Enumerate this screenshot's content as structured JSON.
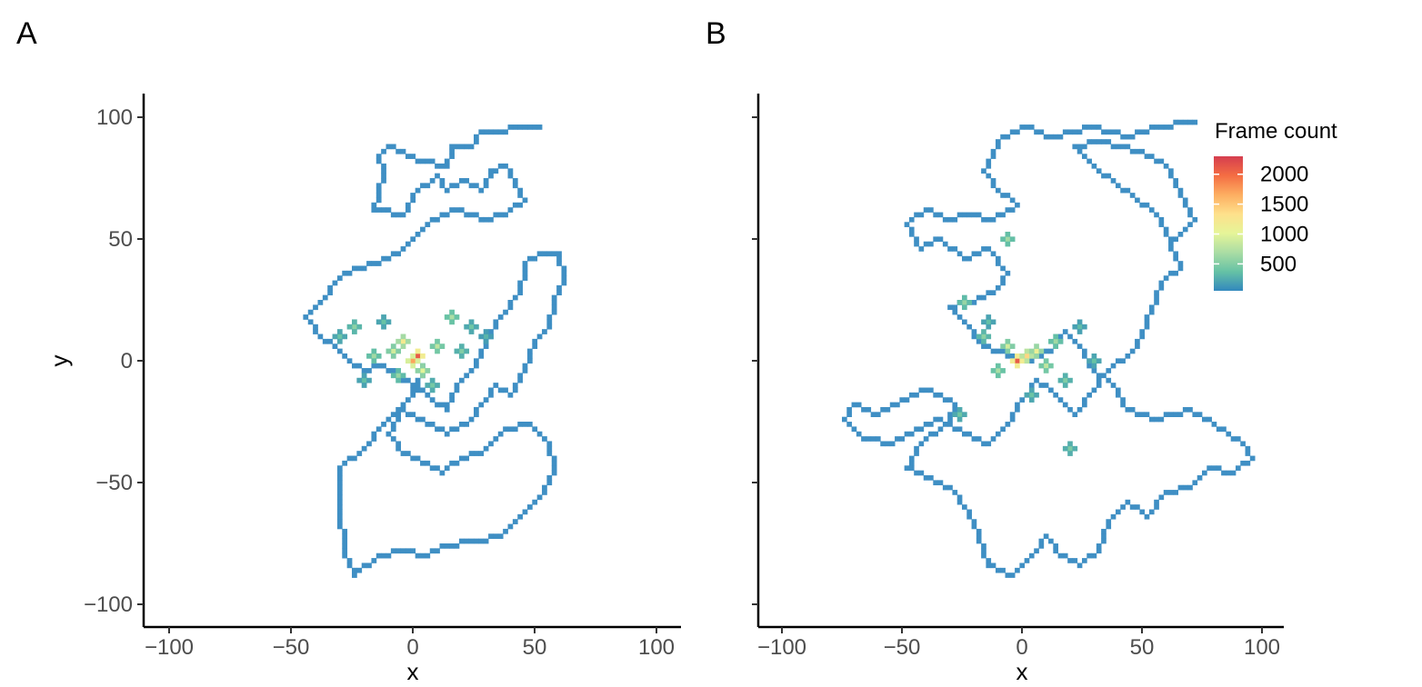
{
  "chart_data": [
    {
      "panel": "A",
      "type": "heatmap",
      "xlabel": "x",
      "ylabel": "y",
      "xlim": [
        -110,
        110
      ],
      "ylim": [
        -110,
        110
      ],
      "xticks": [
        -100,
        -50,
        0,
        50,
        100
      ],
      "yticks": [
        -100,
        -50,
        0,
        50,
        100
      ],
      "xtick_labels": [
        "−100",
        "−50",
        "0",
        "50",
        "100"
      ],
      "ytick_labels": [
        "−100",
        "−50",
        "0",
        "50",
        "100"
      ],
      "grid": false,
      "bin_size": 2,
      "cell_color": "#3f8fc4",
      "trajectory": [
        [
          52,
          95
        ],
        [
          40,
          95
        ],
        [
          28,
          93
        ],
        [
          24,
          88
        ],
        [
          16,
          88
        ],
        [
          14,
          80
        ],
        [
          2,
          82
        ],
        [
          -4,
          86
        ],
        [
          -10,
          88
        ],
        [
          -14,
          84
        ],
        [
          -12,
          78
        ],
        [
          -14,
          70
        ],
        [
          -16,
          62
        ],
        [
          -4,
          60
        ],
        [
          0,
          68
        ],
        [
          10,
          76
        ],
        [
          14,
          70
        ],
        [
          22,
          74
        ],
        [
          28,
          70
        ],
        [
          32,
          78
        ],
        [
          38,
          80
        ],
        [
          42,
          72
        ],
        [
          46,
          66
        ],
        [
          38,
          60
        ],
        [
          30,
          58
        ],
        [
          18,
          62
        ],
        [
          8,
          58
        ],
        [
          0,
          50
        ],
        [
          -6,
          44
        ],
        [
          -16,
          40
        ],
        [
          -28,
          36
        ],
        [
          -40,
          22
        ],
        [
          -44,
          18
        ],
        [
          -38,
          10
        ],
        [
          -30,
          4
        ],
        [
          -26,
          0
        ],
        [
          -20,
          -4
        ],
        [
          -12,
          -2
        ],
        [
          -6,
          -6
        ],
        [
          0,
          -10
        ],
        [
          8,
          -16
        ],
        [
          14,
          -20
        ],
        [
          18,
          -10
        ],
        [
          24,
          -4
        ],
        [
          30,
          8
        ],
        [
          36,
          18
        ],
        [
          44,
          28
        ],
        [
          46,
          40
        ],
        [
          54,
          44
        ],
        [
          60,
          44
        ],
        [
          62,
          34
        ],
        [
          58,
          26
        ],
        [
          56,
          14
        ],
        [
          50,
          8
        ],
        [
          46,
          -4
        ],
        [
          40,
          -14
        ],
        [
          34,
          -10
        ],
        [
          28,
          -18
        ],
        [
          22,
          -26
        ],
        [
          14,
          -30
        ],
        [
          4,
          -24
        ],
        [
          -6,
          -20
        ],
        [
          -14,
          -28
        ],
        [
          -20,
          -36
        ],
        [
          -30,
          -44
        ],
        [
          -30,
          -60
        ],
        [
          -28,
          -80
        ],
        [
          -24,
          -88
        ],
        [
          -14,
          -80
        ],
        [
          -4,
          -78
        ],
        [
          6,
          -80
        ],
        [
          14,
          -76
        ],
        [
          26,
          -74
        ],
        [
          36,
          -72
        ],
        [
          44,
          -64
        ],
        [
          52,
          -56
        ],
        [
          58,
          -46
        ],
        [
          56,
          -34
        ],
        [
          48,
          -26
        ],
        [
          38,
          -28
        ],
        [
          28,
          -38
        ],
        [
          20,
          -40
        ],
        [
          12,
          -46
        ],
        [
          4,
          -42
        ],
        [
          -4,
          -38
        ],
        [
          -10,
          -30
        ],
        [
          -2,
          -16
        ],
        [
          4,
          -4
        ],
        [
          2,
          2
        ]
      ],
      "hot_cells": [
        [
          2,
          2,
          2100
        ],
        [
          0,
          0,
          1700
        ],
        [
          -4,
          8,
          1200
        ],
        [
          4,
          -4,
          1000
        ],
        [
          -8,
          4,
          900
        ],
        [
          10,
          6,
          800
        ],
        [
          16,
          18,
          700
        ],
        [
          -16,
          2,
          650
        ],
        [
          -24,
          14,
          550
        ],
        [
          20,
          4,
          500
        ],
        [
          -6,
          -6,
          600
        ],
        [
          8,
          -10,
          450
        ],
        [
          -30,
          10,
          400
        ],
        [
          24,
          14,
          420
        ],
        [
          -12,
          16,
          380
        ],
        [
          -20,
          -8,
          360
        ],
        [
          30,
          10,
          300
        ]
      ]
    },
    {
      "panel": "B",
      "type": "heatmap",
      "xlabel": "x",
      "ylabel": "",
      "xlim": [
        -110,
        110
      ],
      "ylim": [
        -110,
        110
      ],
      "xticks": [
        -100,
        -50,
        0,
        50,
        100
      ],
      "yticks": [
        -100,
        -50,
        0,
        50,
        100
      ],
      "xtick_labels": [
        "−100",
        "−50",
        "0",
        "50",
        "100"
      ],
      "grid": false,
      "bin_size": 2,
      "cell_color": "#3f8fc4",
      "trajectory": [
        [
          72,
          98
        ],
        [
          56,
          96
        ],
        [
          44,
          92
        ],
        [
          30,
          96
        ],
        [
          12,
          92
        ],
        [
          2,
          96
        ],
        [
          -10,
          90
        ],
        [
          -16,
          78
        ],
        [
          -10,
          70
        ],
        [
          -2,
          64
        ],
        [
          -12,
          58
        ],
        [
          -24,
          60
        ],
        [
          -30,
          58
        ],
        [
          -40,
          62
        ],
        [
          -48,
          56
        ],
        [
          -42,
          46
        ],
        [
          -34,
          50
        ],
        [
          -24,
          42
        ],
        [
          -14,
          46
        ],
        [
          -6,
          36
        ],
        [
          -12,
          28
        ],
        [
          -22,
          24
        ],
        [
          -30,
          22
        ],
        [
          -24,
          16
        ],
        [
          -18,
          8
        ],
        [
          -12,
          4
        ],
        [
          -4,
          2
        ],
        [
          4,
          0
        ],
        [
          12,
          4
        ],
        [
          18,
          12
        ],
        [
          24,
          6
        ],
        [
          30,
          -4
        ],
        [
          38,
          -10
        ],
        [
          44,
          -20
        ],
        [
          56,
          -24
        ],
        [
          70,
          -20
        ],
        [
          80,
          -26
        ],
        [
          92,
          -34
        ],
        [
          96,
          -40
        ],
        [
          88,
          -46
        ],
        [
          78,
          -44
        ],
        [
          70,
          -52
        ],
        [
          60,
          -54
        ],
        [
          52,
          -64
        ],
        [
          44,
          -58
        ],
        [
          36,
          -66
        ],
        [
          32,
          -78
        ],
        [
          24,
          -84
        ],
        [
          16,
          -80
        ],
        [
          10,
          -72
        ],
        [
          4,
          -80
        ],
        [
          -4,
          -88
        ],
        [
          -14,
          -84
        ],
        [
          -18,
          -72
        ],
        [
          -24,
          -60
        ],
        [
          -30,
          -52
        ],
        [
          -40,
          -48
        ],
        [
          -48,
          -44
        ],
        [
          -42,
          -34
        ],
        [
          -32,
          -26
        ],
        [
          -28,
          -18
        ],
        [
          -40,
          -12
        ],
        [
          -50,
          -16
        ],
        [
          -60,
          -22
        ],
        [
          -70,
          -18
        ],
        [
          -74,
          -24
        ],
        [
          -66,
          -32
        ],
        [
          -54,
          -34
        ],
        [
          -44,
          -28
        ],
        [
          -34,
          -24
        ],
        [
          -24,
          -30
        ],
        [
          -14,
          -34
        ],
        [
          -6,
          -26
        ],
        [
          0,
          -16
        ],
        [
          6,
          -8
        ],
        [
          14,
          -14
        ],
        [
          22,
          -22
        ],
        [
          28,
          -14
        ],
        [
          36,
          -4
        ],
        [
          46,
          4
        ],
        [
          52,
          16
        ],
        [
          58,
          32
        ],
        [
          66,
          38
        ],
        [
          62,
          48
        ],
        [
          56,
          60
        ],
        [
          48,
          66
        ],
        [
          40,
          72
        ],
        [
          30,
          80
        ],
        [
          22,
          88
        ],
        [
          34,
          90
        ],
        [
          48,
          86
        ],
        [
          60,
          80
        ],
        [
          66,
          68
        ],
        [
          72,
          58
        ],
        [
          62,
          48
        ]
      ],
      "hot_cells": [
        [
          -2,
          0,
          2100
        ],
        [
          2,
          2,
          1400
        ],
        [
          6,
          4,
          1100
        ],
        [
          -6,
          6,
          900
        ],
        [
          10,
          -2,
          800
        ],
        [
          -10,
          -4,
          700
        ],
        [
          14,
          8,
          650
        ],
        [
          -16,
          10,
          550
        ],
        [
          18,
          -8,
          500
        ],
        [
          -24,
          24,
          600
        ],
        [
          -6,
          50,
          650
        ],
        [
          20,
          -36,
          480
        ],
        [
          -26,
          -22,
          420
        ],
        [
          30,
          0,
          380
        ],
        [
          -14,
          16,
          360
        ],
        [
          4,
          -14,
          400
        ],
        [
          24,
          14,
          340
        ]
      ]
    }
  ],
  "panel_labels": [
    "A",
    "B"
  ],
  "legend": {
    "title": "Frame count",
    "labels": [
      "2000",
      "1500",
      "1000",
      "500"
    ],
    "values": [
      2000,
      1500,
      1000,
      500
    ],
    "range": [
      50,
      2300
    ],
    "colors": [
      "#3288bd",
      "#66c2a5",
      "#abdda4",
      "#e6f598",
      "#fee08b",
      "#fdae61",
      "#f46d43",
      "#d53e4f"
    ]
  }
}
